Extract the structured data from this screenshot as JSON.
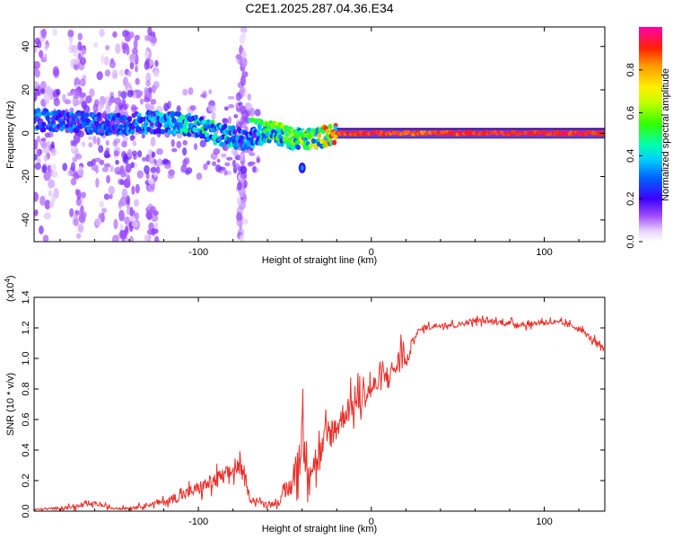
{
  "title": "C2E1.2025.287.04.36.E34",
  "chart_data": [
    {
      "type": "heatmap",
      "name": "spectrogram",
      "xlabel": "Height of straight line (km)",
      "ylabel": "Frequency (Hz)",
      "xlim": [
        -195,
        135
      ],
      "ylim": [
        -50,
        49
      ],
      "xticks": [
        -100,
        0,
        100
      ],
      "xtick_labels": [
        "-100",
        "0",
        "100"
      ],
      "yticks": [
        -40,
        -20,
        0,
        20,
        40
      ],
      "ytick_labels": [
        "-40",
        "-20",
        "0",
        "20",
        "40"
      ],
      "colorbar": {
        "label": "Normalized spectral amplitude",
        "range": [
          0,
          1
        ],
        "ticks": [
          0.0,
          0.2,
          0.4,
          0.6,
          0.8
        ],
        "tick_labels": [
          "0.0",
          "0.2",
          "0.4",
          "0.6",
          "0.8"
        ]
      },
      "features": {
        "dominant_ridge": {
          "x": [
            -190,
            -170,
            -150,
            -130,
            -115,
            -100,
            -90,
            -80,
            -70,
            -60,
            -50,
            -40,
            -30,
            -20,
            0,
            30,
            60,
            100,
            135
          ],
          "freq_hz": [
            6,
            5,
            4,
            5,
            5,
            3,
            0,
            -2,
            -3,
            1,
            -2,
            -3,
            -2,
            0,
            0,
            0,
            0,
            0,
            0
          ],
          "amplitude": [
            0.3,
            0.3,
            0.3,
            0.35,
            0.4,
            0.45,
            0.45,
            0.4,
            0.35,
            0.5,
            0.55,
            0.6,
            0.7,
            0.9,
            0.95,
            0.9,
            0.95,
            0.95,
            0.95
          ]
        },
        "secondary_ridge": {
          "x": [
            -70,
            -63,
            -55,
            -48,
            -42,
            -35
          ],
          "freq_hz": [
            6,
            5,
            4,
            2,
            0,
            -2
          ],
          "amplitude": [
            0.5,
            0.55,
            0.6,
            0.6,
            0.55,
            0.55
          ]
        },
        "isolated_blob": {
          "x": -40,
          "freq_hz": -16,
          "amplitude": 0.2
        }
      }
    },
    {
      "type": "line",
      "name": "snr",
      "xlabel": "Height of straight line (km)",
      "ylabel": "SNR (10 * v/v)",
      "yscale_label": "(x10",
      "yscale_exponent": "4",
      "xlim": [
        -195,
        135
      ],
      "ylim": [
        0,
        1.4
      ],
      "xticks": [
        -100,
        0,
        100
      ],
      "xtick_labels": [
        "-100",
        "0",
        "100"
      ],
      "yticks": [
        0.0,
        0.2,
        0.4,
        0.6,
        0.8,
        1.0,
        1.2,
        1.4
      ],
      "ytick_labels": [
        "0.0",
        "0.2",
        "0.4",
        "0.6",
        "0.8",
        "1.0",
        "1.2",
        "1.4"
      ],
      "series": [
        {
          "name": "SNR",
          "color": "#e8302a",
          "x": [
            -195,
            -180,
            -170,
            -160,
            -150,
            -140,
            -130,
            -120,
            -110,
            -100,
            -90,
            -82,
            -76,
            -70,
            -62,
            -55,
            -50,
            -45,
            -42,
            -40,
            -38,
            -35,
            -30,
            -25,
            -20,
            -15,
            -10,
            -5,
            0,
            5,
            10,
            15,
            18,
            20,
            25,
            30,
            40,
            50,
            60,
            70,
            80,
            90,
            100,
            110,
            120,
            125,
            130,
            135
          ],
          "y": [
            0.01,
            0.02,
            0.03,
            0.05,
            0.02,
            0.02,
            0.04,
            0.06,
            0.1,
            0.15,
            0.2,
            0.25,
            0.3,
            0.08,
            0.05,
            0.05,
            0.1,
            0.2,
            0.35,
            0.5,
            0.35,
            0.3,
            0.35,
            0.5,
            0.55,
            0.65,
            0.7,
            0.75,
            0.8,
            0.85,
            0.9,
            0.95,
            1.1,
            0.95,
            1.15,
            1.2,
            1.22,
            1.22,
            1.25,
            1.24,
            1.23,
            1.22,
            1.24,
            1.23,
            1.2,
            1.15,
            1.1,
            1.05
          ],
          "noise_amplitude": [
            0.01,
            0.02,
            0.03,
            0.03,
            0.02,
            0.02,
            0.03,
            0.05,
            0.08,
            0.1,
            0.12,
            0.12,
            0.12,
            0.05,
            0.03,
            0.04,
            0.1,
            0.2,
            0.35,
            0.4,
            0.3,
            0.25,
            0.25,
            0.25,
            0.2,
            0.2,
            0.2,
            0.2,
            0.18,
            0.15,
            0.15,
            0.15,
            0.2,
            0.1,
            0.05,
            0.04,
            0.04,
            0.04,
            0.04,
            0.04,
            0.04,
            0.04,
            0.04,
            0.04,
            0.04,
            0.04,
            0.05,
            0.05
          ]
        }
      ]
    }
  ]
}
